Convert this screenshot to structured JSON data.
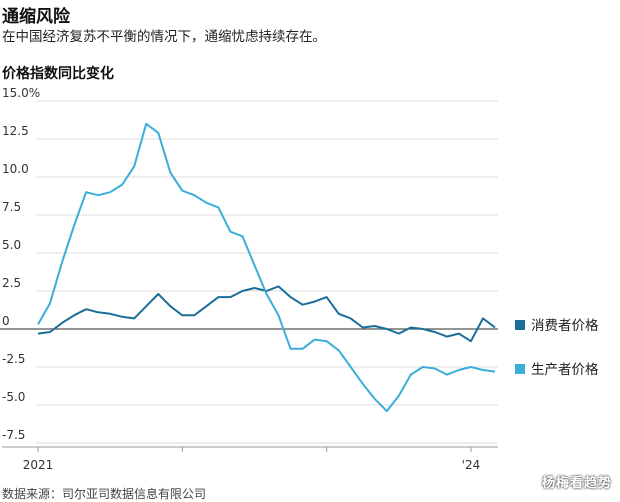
{
  "header": {
    "title": "通缩风险",
    "subtitle": "在中国经济复苏不平衡的情况下，通缩忧虑持续存在。"
  },
  "footer": {
    "source": "数据来源：司尔亚司数据信息有限公司",
    "watermark": "杨梅看趋势"
  },
  "chart_data": {
    "type": "line",
    "title": "价格指数同比变化",
    "ylim": [
      -7.5,
      15.0
    ],
    "y_ticks": [
      15.0,
      12.5,
      10.0,
      7.5,
      5.0,
      2.5,
      0,
      -2.5,
      -5.0,
      -7.5
    ],
    "y_tick_labels": [
      "15.0%",
      "12.5",
      "10.0",
      "7.5",
      "5.0",
      "2.5",
      "0",
      "-2.5",
      "-5.0",
      "-7.5"
    ],
    "x_start": "2021-01",
    "x_end": "2024-02",
    "x_tick_labels": [
      {
        "date": "2021-01",
        "label": "2021"
      },
      {
        "date": "2022-01",
        "label": ""
      },
      {
        "date": "2023-01",
        "label": ""
      },
      {
        "date": "2024-01",
        "label": "'24"
      }
    ],
    "grid": true,
    "legend_position": "right",
    "series": [
      {
        "name": "消费者价格",
        "color": "#1a6e99",
        "points": [
          [
            "2021-01",
            -0.3
          ],
          [
            "2021-02",
            -0.2
          ],
          [
            "2021-03",
            0.4
          ],
          [
            "2021-04",
            0.9
          ],
          [
            "2021-05",
            1.3
          ],
          [
            "2021-06",
            1.1
          ],
          [
            "2021-07",
            1.0
          ],
          [
            "2021-08",
            0.8
          ],
          [
            "2021-09",
            0.7
          ],
          [
            "2021-10",
            1.5
          ],
          [
            "2021-11",
            2.3
          ],
          [
            "2021-12",
            1.5
          ],
          [
            "2022-01",
            0.9
          ],
          [
            "2022-02",
            0.9
          ],
          [
            "2022-03",
            1.5
          ],
          [
            "2022-04",
            2.1
          ],
          [
            "2022-05",
            2.1
          ],
          [
            "2022-06",
            2.5
          ],
          [
            "2022-07",
            2.7
          ],
          [
            "2022-08",
            2.5
          ],
          [
            "2022-09",
            2.8
          ],
          [
            "2022-10",
            2.1
          ],
          [
            "2022-11",
            1.6
          ],
          [
            "2022-12",
            1.8
          ],
          [
            "2023-01",
            2.1
          ],
          [
            "2023-02",
            1.0
          ],
          [
            "2023-03",
            0.7
          ],
          [
            "2023-04",
            0.1
          ],
          [
            "2023-05",
            0.2
          ],
          [
            "2023-06",
            0.0
          ],
          [
            "2023-07",
            -0.3
          ],
          [
            "2023-08",
            0.1
          ],
          [
            "2023-09",
            0.0
          ],
          [
            "2023-10",
            -0.2
          ],
          [
            "2023-11",
            -0.5
          ],
          [
            "2023-12",
            -0.3
          ],
          [
            "2024-01",
            -0.8
          ],
          [
            "2024-02",
            0.7
          ],
          [
            "2024-03",
            0.1
          ]
        ]
      },
      {
        "name": "生产者价格",
        "color": "#3aaed8",
        "points": [
          [
            "2021-01",
            0.3
          ],
          [
            "2021-02",
            1.7
          ],
          [
            "2021-03",
            4.4
          ],
          [
            "2021-04",
            6.8
          ],
          [
            "2021-05",
            9.0
          ],
          [
            "2021-06",
            8.8
          ],
          [
            "2021-07",
            9.0
          ],
          [
            "2021-08",
            9.5
          ],
          [
            "2021-09",
            10.7
          ],
          [
            "2021-10",
            13.5
          ],
          [
            "2021-11",
            12.9
          ],
          [
            "2021-12",
            10.3
          ],
          [
            "2022-01",
            9.1
          ],
          [
            "2022-02",
            8.8
          ],
          [
            "2022-03",
            8.3
          ],
          [
            "2022-04",
            8.0
          ],
          [
            "2022-05",
            6.4
          ],
          [
            "2022-06",
            6.1
          ],
          [
            "2022-07",
            4.2
          ],
          [
            "2022-08",
            2.3
          ],
          [
            "2022-09",
            0.9
          ],
          [
            "2022-10",
            -1.3
          ],
          [
            "2022-11",
            -1.3
          ],
          [
            "2022-12",
            -0.7
          ],
          [
            "2023-01",
            -0.8
          ],
          [
            "2023-02",
            -1.4
          ],
          [
            "2023-03",
            -2.5
          ],
          [
            "2023-04",
            -3.6
          ],
          [
            "2023-05",
            -4.6
          ],
          [
            "2023-06",
            -5.4
          ],
          [
            "2023-07",
            -4.4
          ],
          [
            "2023-08",
            -3.0
          ],
          [
            "2023-09",
            -2.5
          ],
          [
            "2023-10",
            -2.6
          ],
          [
            "2023-11",
            -3.0
          ],
          [
            "2023-12",
            -2.7
          ],
          [
            "2024-01",
            -2.5
          ],
          [
            "2024-02",
            -2.7
          ],
          [
            "2024-03",
            -2.8
          ]
        ]
      }
    ]
  }
}
